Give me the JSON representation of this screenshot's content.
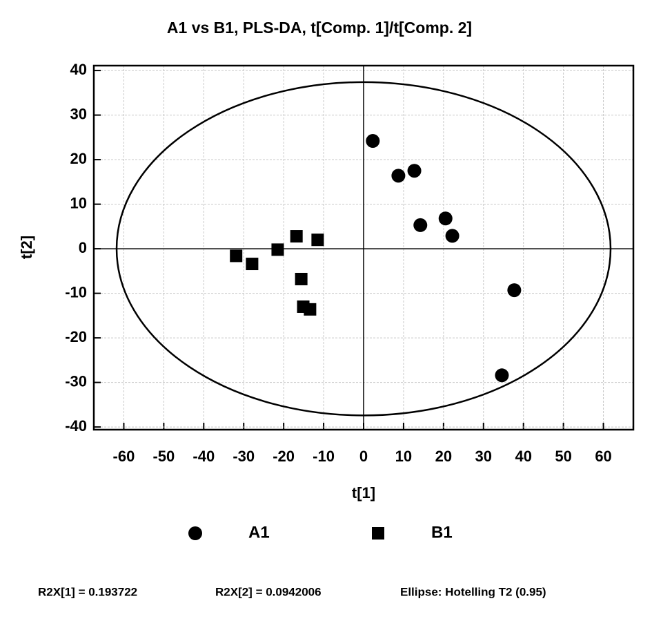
{
  "chart_data": {
    "type": "scatter",
    "title": "A1 vs B1, PLS-DA, t[Comp. 1]/t[Comp. 2]",
    "x_label": "t[1]",
    "y_label": "t[2]",
    "xlim": [
      -67.5,
      67.5
    ],
    "ylim": [
      -40.6,
      41.1
    ],
    "xticks": [
      -60,
      -50,
      -40,
      -30,
      -20,
      -10,
      0,
      10,
      20,
      30,
      40,
      50,
      60
    ],
    "yticks": [
      -40,
      -30,
      -20,
      -10,
      0,
      10,
      20,
      30,
      40
    ],
    "grid": true,
    "zero_lines": true,
    "legend": "bottom",
    "ellipse": {
      "rx": 61.8,
      "ry": 37.4
    },
    "series": [
      {
        "name": "A1",
        "color": "#000000",
        "marker": "circle",
        "x": [
          2.3,
          8.7,
          12.7,
          14.2,
          20.5,
          22.2,
          37.7,
          34.6
        ],
        "values": [
          24.2,
          16.4,
          17.5,
          5.3,
          6.8,
          2.9,
          -9.3,
          -28.4
        ]
      },
      {
        "name": "B1",
        "color": "#000000",
        "marker": "square",
        "x": [
          -31.9,
          -27.9,
          -21.5,
          -16.8,
          -11.5,
          -15.6,
          -15.1,
          -13.4
        ],
        "values": [
          -1.6,
          -3.4,
          -0.2,
          2.8,
          2.0,
          -6.8,
          -13.0,
          -13.6
        ]
      }
    ],
    "annotations": [
      "R2X[1] = 0.193722",
      "R2X[2] = 0.0942006",
      "Ellipse: Hotelling T2 (0.95)"
    ]
  }
}
